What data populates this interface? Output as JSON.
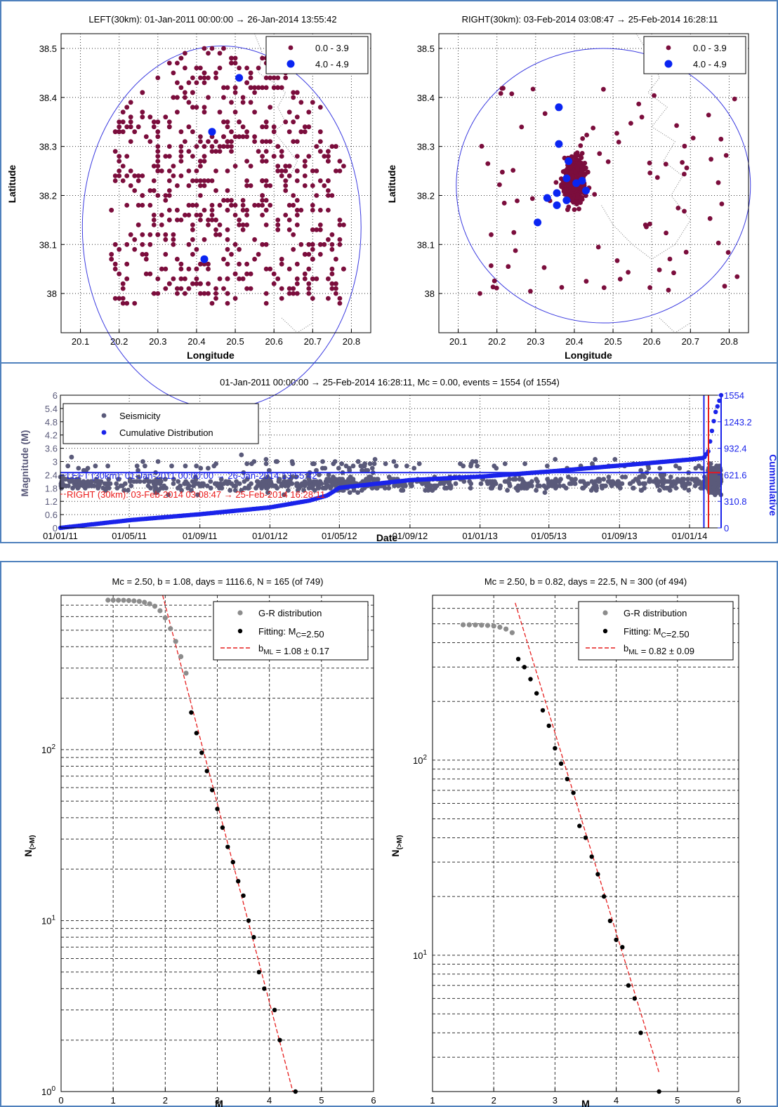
{
  "chart_data": [
    {
      "type": "scatter",
      "title": "LEFT(30km): 01-Jan-2011 00:00:00 → 26-Jan-2014 13:55:42",
      "xlabel": "Longitude",
      "ylabel": "Latitude",
      "xlim": [
        20.05,
        20.85
      ],
      "ylim": [
        37.92,
        38.53
      ],
      "xticks": [
        "20.1",
        "20.2",
        "20.3",
        "20.4",
        "20.5",
        "20.6",
        "20.7",
        "20.8"
      ],
      "yticks": [
        "38",
        "38.1",
        "38.2",
        "38.3",
        "38.4",
        "38.5"
      ],
      "grid": true,
      "legend_placement": "top-right",
      "legend": [
        "0.0 - 3.9",
        "4.0 - 4.9"
      ],
      "colors": {
        "small": "#7b0d3c",
        "large": "#0a25f2",
        "circle": "#3a3ae0",
        "coast": "#7d7d7d"
      },
      "circle": {
        "center": [
          20.465,
          38.135
        ],
        "radius_lon": 0.36,
        "radius_lat": 0.37
      },
      "series": [
        {
          "name": "4.0 - 4.9",
          "points": [
            [
              20.51,
              38.44
            ],
            [
              20.44,
              38.33
            ],
            [
              20.42,
              38.07
            ]
          ]
        }
      ]
    },
    {
      "type": "scatter",
      "title": "RIGHT(30km): 03-Feb-2014 03:08:47 → 25-Feb-2014 16:28:11",
      "xlabel": "Longitude",
      "ylabel": "",
      "xlim": [
        20.05,
        20.85
      ],
      "ylim": [
        37.92,
        38.53
      ],
      "xticks": [
        "20.1",
        "20.2",
        "20.3",
        "20.4",
        "20.5",
        "20.6",
        "20.7",
        "20.8"
      ],
      "yticks": [
        "38",
        "38.1",
        "38.2",
        "38.3",
        "38.4",
        "38.5"
      ],
      "grid": true,
      "legend_placement": "top-right",
      "legend": [
        "0.0 - 3.9",
        "4.0 - 4.9"
      ],
      "circle": {
        "center": [
          20.475,
          38.22
        ],
        "radius_lon": 0.38,
        "radius_lat": 0.28
      },
      "series": [
        {
          "name": "4.0 - 4.9",
          "points": [
            [
              20.36,
              38.38
            ],
            [
              20.36,
              38.305
            ],
            [
              20.385,
              38.27
            ],
            [
              20.38,
              38.235
            ],
            [
              20.405,
              38.225
            ],
            [
              20.42,
              38.23
            ],
            [
              20.43,
              38.21
            ],
            [
              20.355,
              38.205
            ],
            [
              20.33,
              38.195
            ],
            [
              20.38,
              38.19
            ],
            [
              20.355,
              38.18
            ],
            [
              20.305,
              38.145
            ]
          ]
        }
      ]
    },
    {
      "type": "scatter",
      "title": "01-Jan-2011 00:00:00 → 25-Feb-2014 16:28:11, Mc = 0.00, events = 1554 (of 1554)",
      "xlabel": "Date",
      "ylabel": "Magnitude (M)",
      "y2label": "Cummulative",
      "xticks": [
        "01/01/11",
        "01/05/11",
        "01/09/11",
        "01/01/12",
        "01/05/12",
        "01/09/12",
        "01/01/13",
        "01/05/13",
        "01/09/13",
        "01/01/14"
      ],
      "xlim": [
        "2011-01-01",
        "2014-02-25"
      ],
      "ylim": [
        0,
        6
      ],
      "yticks": [
        "0",
        "0.6",
        "1.2",
        "1.8",
        "2.4",
        "3",
        "3.6",
        "4.2",
        "4.8",
        "5.4",
        "6"
      ],
      "y2lim": [
        0,
        1554
      ],
      "y2ticks": [
        "0",
        "310.8",
        "621.6",
        "932.4",
        "1243.2",
        "1554"
      ],
      "grid": true,
      "legend_placement": "top-left",
      "legend": [
        "Seismicity",
        "Cumulative Distribution"
      ],
      "colors": {
        "seismicity": "#5a5a7a",
        "cumulative": "#1a23ea",
        "right": "#ea1a1a"
      },
      "hline_y": 2.5,
      "annotations": [
        "LEFT (30km): 01-Jan-2011 00:00:00 → 26-Jan-2014 13:55:42",
        "RIGHT (30km): 03-Feb-2014 03:08:47 → 25-Feb-2014 16:28:11"
      ],
      "cumulative": [
        [
          "2011-01-01",
          0
        ],
        [
          "2011-05-01",
          90
        ],
        [
          "2011-09-01",
          160
        ],
        [
          "2012-01-01",
          240
        ],
        [
          "2012-03-10",
          320
        ],
        [
          "2012-04-10",
          380
        ],
        [
          "2012-05-01",
          470
        ],
        [
          "2012-09-01",
          560
        ],
        [
          "2013-01-01",
          600
        ],
        [
          "2013-05-01",
          660
        ],
        [
          "2013-09-01",
          730
        ],
        [
          "2014-01-01",
          800
        ],
        [
          "2014-01-26",
          820
        ],
        [
          "2014-02-03",
          900
        ],
        [
          "2014-02-08",
          1100
        ],
        [
          "2014-02-15",
          1350
        ],
        [
          "2014-02-25",
          1554
        ]
      ]
    },
    {
      "type": "scatter",
      "title": "Mc = 2.50, b = 1.08, days = 1116.6, N = 165 (of 749)",
      "xlabel": "M",
      "ylabel": "N(>M)",
      "xlim": [
        0,
        6
      ],
      "ylog": true,
      "ylim": [
        1,
        800
      ],
      "xticks": [
        "0",
        "1",
        "2",
        "3",
        "4",
        "5",
        "6"
      ],
      "grid": true,
      "legend_placement": "top-right",
      "legend": [
        "G-R distribution",
        "Fitting: Mc=2.50",
        "bML = 1.08 ± 0.17"
      ],
      "colors": {
        "gr": "#8c8c8c",
        "fit": "#000000",
        "line": "#e61e1e"
      },
      "gr_points": [
        [
          0.9,
          749
        ],
        [
          1.0,
          749
        ],
        [
          1.1,
          748
        ],
        [
          1.2,
          747
        ],
        [
          1.3,
          745
        ],
        [
          1.4,
          742
        ],
        [
          1.5,
          737
        ],
        [
          1.6,
          728
        ],
        [
          1.7,
          713
        ],
        [
          1.8,
          690
        ],
        [
          1.9,
          650
        ],
        [
          2.0,
          590
        ],
        [
          2.1,
          510
        ],
        [
          2.2,
          430
        ],
        [
          2.3,
          350
        ],
        [
          2.4,
          280
        ]
      ],
      "fit_points": [
        [
          2.5,
          165
        ],
        [
          2.6,
          125
        ],
        [
          2.7,
          96
        ],
        [
          2.8,
          75
        ],
        [
          2.9,
          58
        ],
        [
          3.0,
          45
        ],
        [
          3.1,
          35
        ],
        [
          3.2,
          27
        ],
        [
          3.3,
          22
        ],
        [
          3.4,
          17
        ],
        [
          3.5,
          14
        ],
        [
          3.6,
          10
        ],
        [
          3.7,
          8
        ],
        [
          3.8,
          5
        ],
        [
          3.9,
          4
        ],
        [
          4.1,
          3
        ],
        [
          4.2,
          2
        ],
        [
          4.5,
          1
        ]
      ],
      "fit_line": [
        [
          1.95,
          840
        ],
        [
          4.45,
          1
        ]
      ]
    },
    {
      "type": "scatter",
      "title": "Mc = 2.50, b = 0.82, days = 22.5, N = 300 (of 494)",
      "xlabel": "M",
      "ylabel": "N(>M)",
      "xlim": [
        1,
        6
      ],
      "ylog": true,
      "ylim": [
        2,
        700
      ],
      "xticks": [
        "1",
        "2",
        "3",
        "4",
        "5",
        "6"
      ],
      "grid": true,
      "legend_placement": "top-right",
      "legend": [
        "G-R distribution",
        "Fitting: Mc=2.50",
        "bML = 0.82 ± 0.09"
      ],
      "gr_points": [
        [
          1.5,
          494
        ],
        [
          1.6,
          494
        ],
        [
          1.7,
          493
        ],
        [
          1.8,
          492
        ],
        [
          1.9,
          490
        ],
        [
          2.0,
          487
        ],
        [
          2.1,
          480
        ],
        [
          2.2,
          470
        ],
        [
          2.3,
          450
        ]
      ],
      "fit_points": [
        [
          2.4,
          330
        ],
        [
          2.5,
          300
        ],
        [
          2.6,
          260
        ],
        [
          2.7,
          220
        ],
        [
          2.8,
          180
        ],
        [
          2.9,
          150
        ],
        [
          3.0,
          115
        ],
        [
          3.1,
          96
        ],
        [
          3.2,
          80
        ],
        [
          3.3,
          68
        ],
        [
          3.4,
          46
        ],
        [
          3.5,
          40
        ],
        [
          3.6,
          32
        ],
        [
          3.7,
          26
        ],
        [
          3.8,
          20
        ],
        [
          3.9,
          15
        ],
        [
          4.0,
          12
        ],
        [
          4.1,
          11
        ],
        [
          4.2,
          7
        ],
        [
          4.3,
          6
        ],
        [
          4.4,
          4
        ],
        [
          4.7,
          2
        ]
      ],
      "fit_line": [
        [
          2.35,
          640
        ],
        [
          4.7,
          2.5
        ]
      ]
    }
  ]
}
